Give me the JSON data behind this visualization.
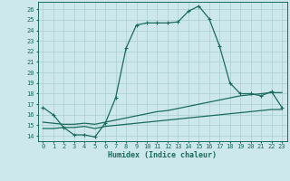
{
  "xlabel": "Humidex (Indice chaleur)",
  "xlim": [
    -0.5,
    23.5
  ],
  "ylim": [
    13.5,
    26.7
  ],
  "xticks": [
    0,
    1,
    2,
    3,
    4,
    5,
    6,
    7,
    8,
    9,
    10,
    11,
    12,
    13,
    14,
    15,
    16,
    17,
    18,
    19,
    20,
    21,
    22,
    23
  ],
  "yticks": [
    14,
    15,
    16,
    17,
    18,
    19,
    20,
    21,
    22,
    23,
    24,
    25,
    26
  ],
  "bg_color": "#cce8ec",
  "grid_color": "#aacfd4",
  "line_color": "#1a6b5a",
  "line1_x": [
    0,
    1,
    2,
    3,
    4,
    5,
    6,
    7,
    8,
    9,
    10,
    11,
    12,
    13,
    14,
    15,
    16,
    17,
    18,
    19,
    20,
    21,
    22,
    23
  ],
  "line1_y": [
    16.7,
    16.0,
    14.8,
    14.1,
    14.1,
    13.9,
    15.2,
    17.6,
    22.3,
    24.5,
    24.7,
    24.7,
    24.7,
    24.8,
    25.8,
    26.3,
    25.1,
    22.5,
    19.0,
    18.0,
    18.0,
    17.8,
    18.2,
    16.7
  ],
  "line2_x": [
    0,
    1,
    2,
    3,
    4,
    5,
    6,
    7,
    8,
    9,
    10,
    11,
    12,
    13,
    14,
    15,
    16,
    17,
    18,
    19,
    20,
    21,
    22,
    23
  ],
  "line2_y": [
    15.3,
    15.2,
    15.1,
    15.1,
    15.2,
    15.1,
    15.3,
    15.5,
    15.7,
    15.9,
    16.1,
    16.3,
    16.4,
    16.6,
    16.8,
    17.0,
    17.2,
    17.4,
    17.6,
    17.8,
    17.9,
    18.0,
    18.1,
    18.1
  ],
  "line3_x": [
    0,
    1,
    2,
    3,
    4,
    5,
    6,
    7,
    8,
    9,
    10,
    11,
    12,
    13,
    14,
    15,
    16,
    17,
    18,
    19,
    20,
    21,
    22,
    23
  ],
  "line3_y": [
    14.7,
    14.7,
    14.8,
    14.8,
    14.9,
    14.7,
    14.9,
    15.0,
    15.1,
    15.2,
    15.3,
    15.4,
    15.5,
    15.6,
    15.7,
    15.8,
    15.9,
    16.0,
    16.1,
    16.2,
    16.3,
    16.4,
    16.5,
    16.5
  ]
}
